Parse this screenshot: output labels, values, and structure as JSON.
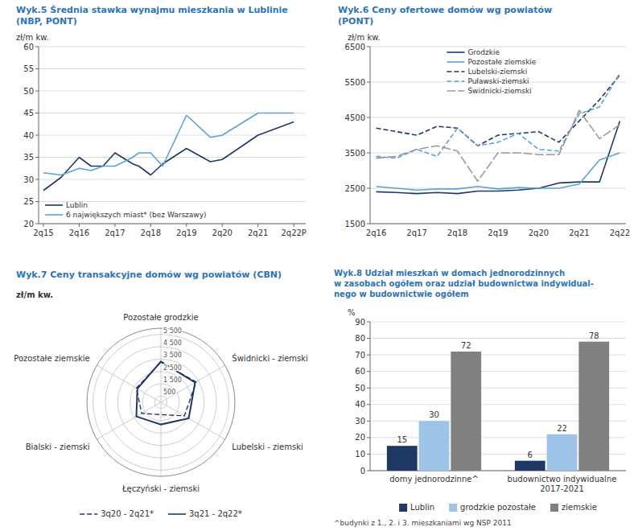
{
  "chart_data": [
    {
      "type": "line",
      "title": "Wyk.5 Średnia stawka wynajmu mieszkania w Lublinie\n(NBP, PONT)",
      "ylabel": "zł/m kw.",
      "x": [
        0,
        0.75,
        1.5,
        2.0,
        2.5,
        3,
        3.75,
        4,
        4.5,
        5,
        6,
        7,
        7.5,
        9,
        10.5
      ],
      "xlim": [
        -0.2,
        11.0
      ],
      "xticks": [
        {
          "value": 0,
          "label": "2q15"
        },
        {
          "value": 1.5,
          "label": "2q16"
        },
        {
          "value": 3,
          "label": "2q17"
        },
        {
          "value": 4.5,
          "label": "2q18"
        },
        {
          "value": 6,
          "label": "2q19"
        },
        {
          "value": 7.5,
          "label": "2q20"
        },
        {
          "value": 9,
          "label": "2q21"
        },
        {
          "value": 10.5,
          "label": "2q22P"
        }
      ],
      "ylim": [
        20,
        60
      ],
      "yticks": [
        20,
        25,
        30,
        35,
        40,
        45,
        50,
        55,
        60
      ],
      "series": [
        {
          "name": "Lublin",
          "color": "#1F3864",
          "line_style": "solid",
          "values": [
            27.5,
            30.5,
            35,
            33,
            33,
            36,
            33.5,
            33,
            31,
            33.5,
            37,
            34,
            34.5,
            40,
            43
          ]
        },
        {
          "name": "6 największych miast* (bez Warszawy)",
          "color": "#5BA3D0",
          "line_style": "solid",
          "values": [
            31.5,
            31,
            32.5,
            32,
            33,
            33,
            35,
            36,
            36,
            33,
            44.5,
            39.5,
            40,
            45,
            45
          ]
        }
      ],
      "grid": true,
      "legend": "lower left"
    },
    {
      "type": "line",
      "title": "Wyk.6 Ceny ofertowe domów wg powiatów\n(PONT)",
      "ylabel": "zł/m kw.",
      "categories": [
        "2q16",
        null,
        "2q17",
        null,
        "2q18",
        null,
        "2q19",
        null,
        "2q20",
        null,
        "2q21",
        null,
        "2q22"
      ],
      "ylim": [
        1500,
        6500
      ],
      "yticks": [
        1500,
        2500,
        3500,
        4500,
        5500,
        6500
      ],
      "series": [
        {
          "name": "Grodzkie",
          "color": "#1F3864",
          "line_style": "solid",
          "values": [
            2400,
            2380,
            2350,
            2380,
            2350,
            2420,
            2420,
            2450,
            2500,
            2650,
            2680,
            2680,
            4400
          ]
        },
        {
          "name": "Pozostałe ziemskie",
          "color": "#5BA3D0",
          "line_style": "solid",
          "values": [
            2550,
            2500,
            2450,
            2480,
            2480,
            2550,
            2480,
            2520,
            2500,
            2500,
            2620,
            3300,
            3500
          ]
        },
        {
          "name": "Lubelski-ziemski",
          "color": "#1F3864",
          "line_style": "dashed",
          "values": [
            4200,
            4100,
            4000,
            4250,
            4200,
            3700,
            4000,
            4050,
            4100,
            3800,
            4400,
            5000,
            5700
          ]
        },
        {
          "name": "Puławski-ziemski",
          "color": "#5BA3D0",
          "line_style": "dashed",
          "values": [
            3400,
            3350,
            3600,
            3400,
            4200,
            3700,
            3800,
            4050,
            3600,
            3550,
            4600,
            4800,
            5750
          ]
        },
        {
          "name": "Świdnicki-ziemski",
          "color": "#999999",
          "line_style": "longdash",
          "values": [
            3350,
            3400,
            3600,
            3700,
            3550,
            2700,
            3500,
            3500,
            3450,
            3450,
            4700,
            3900,
            4300
          ]
        }
      ],
      "grid": true,
      "legend": "upper center"
    },
    {
      "type": "radar",
      "title": "Wyk.7 Ceny transakcyjne domów wg powiatów (CBN)",
      "ylabel": "zł/m kw.",
      "categories": [
        "Pozostałe grodzkie",
        "Świdnicki - ziemski",
        "Lubelski - ziemski",
        "Łęczyński - ziemski",
        "Bialski - ziemski",
        "Pozostałe ziemskie"
      ],
      "ylim": [
        0,
        6000
      ],
      "yticks": [
        500,
        {
          "value": 1500,
          "label": "1 500"
        },
        {
          "value": 2500,
          "label": "2 500"
        },
        {
          "value": 3500,
          "label": "3 500"
        },
        {
          "value": 4500,
          "label": "4 500"
        },
        {
          "value": 5500,
          "label": "5 500"
        }
      ],
      "series": [
        {
          "name": "3q20 - 2q21*",
          "color": "#1F3864",
          "line_style": "dashed",
          "values": [
            3250,
            3300,
            2200,
            1000,
            1800,
            2300
          ]
        },
        {
          "name": "3q21 - 2q22*",
          "color": "#1F3864",
          "line_style": "solid",
          "values": [
            3300,
            3200,
            2600,
            1800,
            2300,
            2200
          ]
        }
      ],
      "grid": true,
      "legend": "bottom"
    },
    {
      "type": "bar",
      "title": "Wyk.8 Udział mieszkań w domach jednorodzinnych\nw zasobach ogółem oraz udział budownictwa indywidual-\nnego w budownictwie ogółem",
      "ylabel": "%",
      "categories": [
        "domy jednorodzinne^",
        "budownictwo indywidualne\n2017-2021"
      ],
      "ylim": [
        0,
        90
      ],
      "yticks": [
        0,
        10,
        20,
        30,
        40,
        50,
        60,
        70,
        80,
        90
      ],
      "series": [
        {
          "name": "Lublin",
          "color": "#1F3864",
          "values": [
            15,
            6
          ]
        },
        {
          "name": "grodzkie pozostałe",
          "color": "#9DC3E6",
          "values": [
            30,
            22
          ]
        },
        {
          "name": "ziemskie",
          "color": "#808080",
          "values": [
            72,
            78
          ]
        }
      ],
      "data_labels": true,
      "grid": true,
      "legend": "bottom",
      "annotations": [
        "^budynki z 1., 2. i 3. mieszkaniami wg NSP 2011"
      ]
    }
  ]
}
